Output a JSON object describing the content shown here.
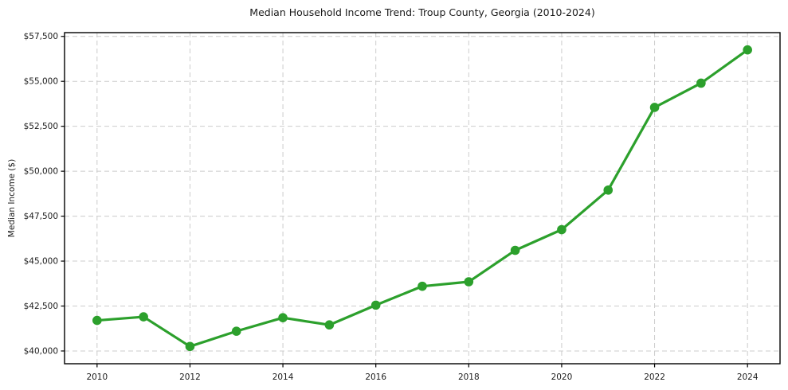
{
  "chart_data": {
    "type": "line",
    "title": "Median Household Income Trend: Troup County, Georgia (2010-2024)",
    "xlabel": "",
    "ylabel": "Median Income ($)",
    "x": [
      2010,
      2011,
      2012,
      2013,
      2014,
      2015,
      2016,
      2017,
      2018,
      2019,
      2020,
      2021,
      2022,
      2023,
      2024
    ],
    "values": [
      41700,
      41900,
      40250,
      41100,
      41850,
      41450,
      42550,
      43600,
      43850,
      45600,
      46750,
      48950,
      53550,
      54900,
      56750
    ],
    "xticks": {
      "values": [
        2010,
        2012,
        2014,
        2016,
        2018,
        2020,
        2022,
        2024
      ],
      "labels": [
        "2010",
        "2012",
        "2014",
        "2016",
        "2018",
        "2020",
        "2022",
        "2024"
      ]
    },
    "yticks": {
      "values": [
        40000,
        42500,
        45000,
        47500,
        50000,
        52500,
        55000,
        57500
      ],
      "labels": [
        "$40,000",
        "$42,500",
        "$45,000",
        "$47,500",
        "$50,000",
        "$52,500",
        "$55,000",
        "$57,500"
      ]
    },
    "xlim": [
      2009.3,
      2024.7
    ],
    "ylim": [
      39290,
      57710
    ],
    "grid": true,
    "legend": "none",
    "style": {
      "line_color": "#2ca02c",
      "marker": "circle",
      "marker_color": "#2ca02c",
      "grid_color": "#cccccc",
      "grid_style": "dashed",
      "spine_color": "#000000",
      "text_color": "#1a1a1a",
      "background": "#ffffff"
    }
  }
}
